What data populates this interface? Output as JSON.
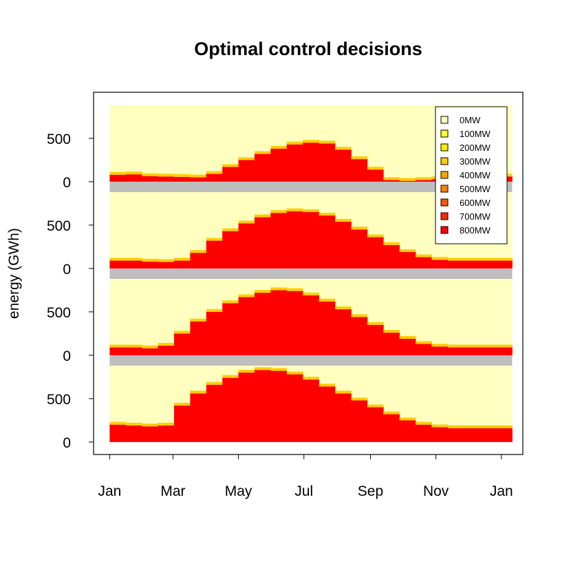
{
  "chart_data": {
    "type": "policy-heatmap",
    "title": "Optimal control decisions",
    "ylabel": "energy (GWh)",
    "xlim": [
      -15,
      385
    ],
    "xticks": [
      {
        "value": 0,
        "label": "Jan"
      },
      {
        "value": 59,
        "label": "Mar"
      },
      {
        "value": 120,
        "label": "May"
      },
      {
        "value": 181,
        "label": "Jul"
      },
      {
        "value": 243,
        "label": "Sep"
      },
      {
        "value": 304,
        "label": "Nov"
      },
      {
        "value": 365,
        "label": "Jan"
      }
    ],
    "x": [
      0,
      15,
      30,
      45,
      60,
      75,
      90,
      105,
      120,
      135,
      150,
      165,
      180,
      195,
      210,
      225,
      240,
      255,
      270,
      285,
      300,
      315,
      330,
      345,
      360
    ],
    "na_color": "#BEBEBE",
    "legend": [
      {
        "label": "0MW",
        "color": "#FFFFC0"
      },
      {
        "label": "100MW",
        "color": "#FFFF33"
      },
      {
        "label": "200MW",
        "color": "#FFEE00"
      },
      {
        "label": "300MW",
        "color": "#FFCC00"
      },
      {
        "label": "400MW",
        "color": "#FFA500"
      },
      {
        "label": "500MW",
        "color": "#FF8000"
      },
      {
        "label": "600MW",
        "color": "#FF5500"
      },
      {
        "label": "700MW",
        "color": "#FF2A00"
      },
      {
        "label": "800MW",
        "color": "#FF0000"
      }
    ],
    "panels": [
      {
        "ylim": [
          -120,
          880
        ],
        "yticks": [
          0,
          500
        ],
        "boundary": [
          80,
          85,
          65,
          60,
          55,
          50,
          90,
          170,
          250,
          320,
          380,
          430,
          450,
          440,
          370,
          260,
          140,
          20,
          10,
          20,
          30,
          30,
          40,
          50,
          60
        ]
      },
      {
        "ylim": [
          -120,
          880
        ],
        "yticks": [
          0,
          500
        ],
        "boundary": [
          90,
          90,
          80,
          75,
          90,
          180,
          320,
          430,
          520,
          590,
          640,
          660,
          650,
          610,
          540,
          450,
          360,
          270,
          190,
          130,
          100,
          90,
          90,
          90,
          90
        ]
      },
      {
        "ylim": [
          -120,
          880
        ],
        "yticks": [
          0,
          500
        ],
        "boundary": [
          90,
          90,
          80,
          110,
          250,
          390,
          500,
          600,
          670,
          720,
          750,
          740,
          690,
          620,
          530,
          440,
          350,
          260,
          190,
          130,
          100,
          90,
          90,
          90,
          90
        ]
      },
      {
        "ylim": [
          0,
          880
        ],
        "yticks": [
          0,
          500
        ],
        "boundary": [
          200,
          190,
          180,
          190,
          420,
          560,
          660,
          740,
          800,
          830,
          820,
          780,
          720,
          640,
          560,
          480,
          400,
          320,
          250,
          200,
          170,
          160,
          160,
          160,
          160
        ]
      }
    ]
  }
}
